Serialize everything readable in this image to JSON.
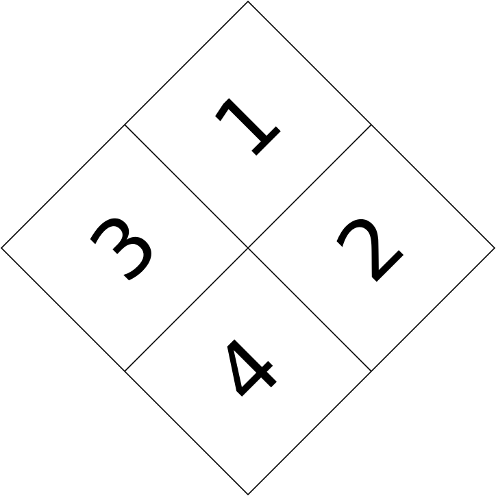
{
  "diagram": {
    "cells": [
      {
        "id": "top",
        "label": "1"
      },
      {
        "id": "right",
        "label": "2"
      },
      {
        "id": "left",
        "label": "3"
      },
      {
        "id": "bottom",
        "label": "4"
      }
    ],
    "colors": {
      "background": "#ffffff",
      "stroke": "#000000",
      "text": "#000000"
    }
  }
}
